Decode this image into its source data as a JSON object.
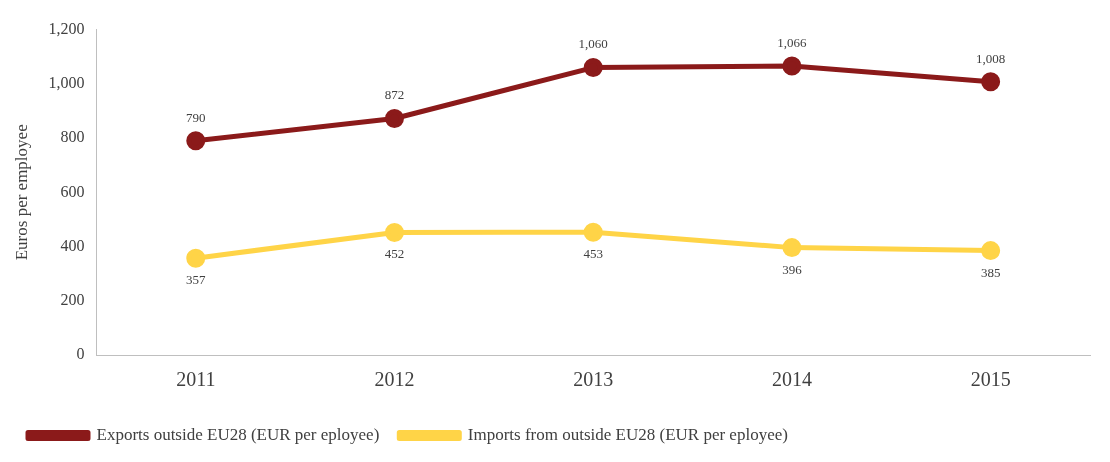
{
  "chart_data": {
    "type": "line",
    "ylabel": "Euros per employee",
    "categories": [
      "2011",
      "2012",
      "2013",
      "2014",
      "2015"
    ],
    "series": [
      {
        "name": "Exports outside EU28 (EUR per eployee)",
        "color": "#8b1a1a",
        "values": [
          790,
          872,
          1060,
          1066,
          1008
        ],
        "value_labels": [
          "790",
          "872",
          "1,060",
          "1,066",
          "1,008"
        ]
      },
      {
        "name": "Imports from outside EU28 (EUR per eployee)",
        "color": "#ffd447",
        "values": [
          357,
          452,
          453,
          396,
          385
        ],
        "value_labels": [
          "357",
          "452",
          "453",
          "396",
          "385"
        ]
      }
    ],
    "ylim": [
      0,
      1200
    ],
    "yticks": [
      0,
      {
        "value": 200,
        "label": "200"
      },
      {
        "value": 400,
        "label": "400"
      },
      {
        "value": 600,
        "label": "600"
      },
      {
        "value": 800,
        "label": "800"
      },
      {
        "value": 1000,
        "label": "1,000"
      },
      {
        "value": 1200,
        "label": "1,200"
      }
    ],
    "grid": false,
    "legend": "bottom left",
    "marker": "circle",
    "line_style": "solid"
  }
}
